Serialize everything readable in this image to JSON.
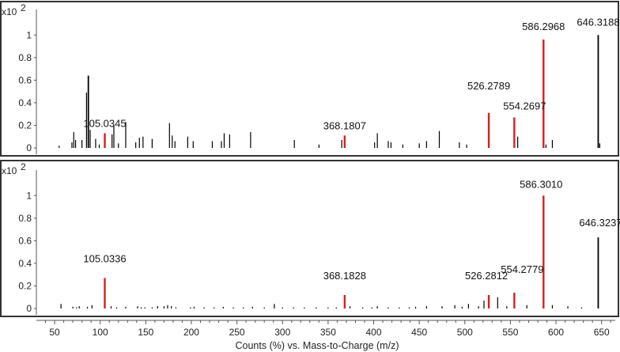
{
  "chart_data": [
    {
      "type": "bar",
      "y_multiplier": "x10",
      "y_exponent": "2",
      "ylim": [
        0,
        1.1
      ],
      "y_ticks": [
        0,
        0.2,
        0.4,
        0.6,
        0.8,
        1
      ],
      "y_tick_labels": [
        "0",
        "0.2",
        "0.4",
        "0.6",
        "0.8",
        "1"
      ],
      "xlim": [
        30,
        665
      ],
      "grid": false,
      "highlight_color": "#d62020",
      "bar_color": "#000000",
      "peaks": [
        {
          "x": 55,
          "y": 0.02,
          "hl": false
        },
        {
          "x": 69,
          "y": 0.05,
          "hl": false
        },
        {
          "x": 71,
          "y": 0.14,
          "hl": false
        },
        {
          "x": 73,
          "y": 0.07,
          "hl": false
        },
        {
          "x": 80,
          "y": 0.07,
          "hl": false
        },
        {
          "x": 85,
          "y": 0.49,
          "hl": false
        },
        {
          "x": 87,
          "y": 0.64,
          "hl": false
        },
        {
          "x": 89,
          "y": 0.16,
          "hl": false
        },
        {
          "x": 95,
          "y": 0.08,
          "hl": false
        },
        {
          "x": 99,
          "y": 0.03,
          "hl": false
        },
        {
          "x": 105.0345,
          "y": 0.13,
          "hl": true
        },
        {
          "x": 113,
          "y": 0.12,
          "hl": false
        },
        {
          "x": 115,
          "y": 0.2,
          "hl": false
        },
        {
          "x": 120,
          "y": 0.04,
          "hl": false
        },
        {
          "x": 128,
          "y": 0.23,
          "hl": false
        },
        {
          "x": 139,
          "y": 0.05,
          "hl": false
        },
        {
          "x": 143,
          "y": 0.09,
          "hl": false
        },
        {
          "x": 147,
          "y": 0.1,
          "hl": false
        },
        {
          "x": 157,
          "y": 0.08,
          "hl": false
        },
        {
          "x": 176,
          "y": 0.22,
          "hl": false
        },
        {
          "x": 179,
          "y": 0.11,
          "hl": false
        },
        {
          "x": 182,
          "y": 0.06,
          "hl": false
        },
        {
          "x": 196,
          "y": 0.1,
          "hl": false
        },
        {
          "x": 202,
          "y": 0.06,
          "hl": false
        },
        {
          "x": 223,
          "y": 0.06,
          "hl": false
        },
        {
          "x": 233,
          "y": 0.06,
          "hl": false
        },
        {
          "x": 236,
          "y": 0.13,
          "hl": false
        },
        {
          "x": 242,
          "y": 0.12,
          "hl": false
        },
        {
          "x": 265,
          "y": 0.14,
          "hl": false
        },
        {
          "x": 313,
          "y": 0.07,
          "hl": false
        },
        {
          "x": 340,
          "y": 0.03,
          "hl": false
        },
        {
          "x": 365,
          "y": 0.07,
          "hl": false
        },
        {
          "x": 368.1807,
          "y": 0.11,
          "hl": true
        },
        {
          "x": 401,
          "y": 0.05,
          "hl": false
        },
        {
          "x": 404,
          "y": 0.13,
          "hl": false
        },
        {
          "x": 416,
          "y": 0.06,
          "hl": false
        },
        {
          "x": 419,
          "y": 0.05,
          "hl": false
        },
        {
          "x": 432,
          "y": 0.03,
          "hl": false
        },
        {
          "x": 450,
          "y": 0.04,
          "hl": false
        },
        {
          "x": 458,
          "y": 0.06,
          "hl": false
        },
        {
          "x": 472,
          "y": 0.15,
          "hl": false
        },
        {
          "x": 494,
          "y": 0.05,
          "hl": false
        },
        {
          "x": 502,
          "y": 0.03,
          "hl": false
        },
        {
          "x": 526.2789,
          "y": 0.31,
          "hl": true
        },
        {
          "x": 554.2697,
          "y": 0.27,
          "hl": true
        },
        {
          "x": 558,
          "y": 0.1,
          "hl": false
        },
        {
          "x": 586.2968,
          "y": 0.96,
          "hl": true
        },
        {
          "x": 589,
          "y": 0.03,
          "hl": false
        },
        {
          "x": 596,
          "y": 0.07,
          "hl": false
        },
        {
          "x": 646.3188,
          "y": 1.0,
          "hl": false
        },
        {
          "x": 648,
          "y": 0.04,
          "hl": false
        }
      ],
      "labels": [
        {
          "text": "105.0345",
          "x": 105.0345,
          "y": 0.13
        },
        {
          "text": "368.1807",
          "x": 368.1807,
          "y": 0.11
        },
        {
          "text": "526.2789",
          "x": 526.2789,
          "y": 0.31
        },
        {
          "text": "554.2697",
          "x": 554.2697,
          "y": 0.27
        },
        {
          "text": "586.2968",
          "x": 586.2968,
          "y": 0.96
        },
        {
          "text": "646.3188",
          "x": 646.3188,
          "y": 1.0
        }
      ]
    },
    {
      "type": "bar",
      "y_multiplier": "x10",
      "y_exponent": "2",
      "ylim": [
        0,
        1.1
      ],
      "y_ticks": [
        0,
        0.2,
        0.4,
        0.6,
        0.8,
        1
      ],
      "y_tick_labels": [
        "0",
        "0.2",
        "0.4",
        "0.6",
        "0.8",
        "1"
      ],
      "xlim": [
        30,
        665
      ],
      "grid": false,
      "highlight_color": "#d62020",
      "bar_color": "#000000",
      "x_ticks": [
        50,
        100,
        150,
        200,
        250,
        300,
        350,
        400,
        450,
        500,
        550,
        600,
        650
      ],
      "x_tick_labels": [
        "50",
        "100",
        "150",
        "200",
        "250",
        "300",
        "350",
        "400",
        "450",
        "500",
        "550",
        "600",
        "650"
      ],
      "xlabel": "Counts (%) vs. Mass-to-Charge (m/z)",
      "peaks": [
        {
          "x": 57,
          "y": 0.04,
          "hl": false
        },
        {
          "x": 70,
          "y": 0.015,
          "hl": false
        },
        {
          "x": 74,
          "y": 0.01,
          "hl": false
        },
        {
          "x": 77,
          "y": 0.02,
          "hl": false
        },
        {
          "x": 86,
          "y": 0.015,
          "hl": false
        },
        {
          "x": 91,
          "y": 0.03,
          "hl": false
        },
        {
          "x": 105.0336,
          "y": 0.27,
          "hl": true
        },
        {
          "x": 112,
          "y": 0.02,
          "hl": false
        },
        {
          "x": 118,
          "y": 0.01,
          "hl": false
        },
        {
          "x": 128,
          "y": 0.015,
          "hl": false
        },
        {
          "x": 141,
          "y": 0.02,
          "hl": false
        },
        {
          "x": 145,
          "y": 0.01,
          "hl": false
        },
        {
          "x": 149,
          "y": 0.01,
          "hl": false
        },
        {
          "x": 157,
          "y": 0.01,
          "hl": false
        },
        {
          "x": 163,
          "y": 0.02,
          "hl": false
        },
        {
          "x": 170,
          "y": 0.02,
          "hl": false
        },
        {
          "x": 174,
          "y": 0.03,
          "hl": false
        },
        {
          "x": 178,
          "y": 0.02,
          "hl": false
        },
        {
          "x": 183,
          "y": 0.01,
          "hl": false
        },
        {
          "x": 199,
          "y": 0.01,
          "hl": false
        },
        {
          "x": 203,
          "y": 0.015,
          "hl": false
        },
        {
          "x": 214,
          "y": 0.01,
          "hl": false
        },
        {
          "x": 225,
          "y": 0.01,
          "hl": false
        },
        {
          "x": 235,
          "y": 0.015,
          "hl": false
        },
        {
          "x": 246,
          "y": 0.01,
          "hl": false
        },
        {
          "x": 257,
          "y": 0.01,
          "hl": false
        },
        {
          "x": 267,
          "y": 0.015,
          "hl": false
        },
        {
          "x": 280,
          "y": 0.01,
          "hl": false
        },
        {
          "x": 291,
          "y": 0.04,
          "hl": false
        },
        {
          "x": 300,
          "y": 0.01,
          "hl": false
        },
        {
          "x": 312,
          "y": 0.01,
          "hl": false
        },
        {
          "x": 324,
          "y": 0.01,
          "hl": false
        },
        {
          "x": 337,
          "y": 0.01,
          "hl": false
        },
        {
          "x": 350,
          "y": 0.01,
          "hl": false
        },
        {
          "x": 359,
          "y": 0.01,
          "hl": false
        },
        {
          "x": 368.1828,
          "y": 0.12,
          "hl": true
        },
        {
          "x": 374,
          "y": 0.02,
          "hl": false
        },
        {
          "x": 388,
          "y": 0.01,
          "hl": false
        },
        {
          "x": 398,
          "y": 0.01,
          "hl": false
        },
        {
          "x": 404,
          "y": 0.02,
          "hl": false
        },
        {
          "x": 416,
          "y": 0.01,
          "hl": false
        },
        {
          "x": 428,
          "y": 0.01,
          "hl": false
        },
        {
          "x": 439,
          "y": 0.01,
          "hl": false
        },
        {
          "x": 446,
          "y": 0.015,
          "hl": false
        },
        {
          "x": 458,
          "y": 0.02,
          "hl": false
        },
        {
          "x": 475,
          "y": 0.02,
          "hl": false
        },
        {
          "x": 489,
          "y": 0.03,
          "hl": false
        },
        {
          "x": 497,
          "y": 0.015,
          "hl": false
        },
        {
          "x": 504,
          "y": 0.04,
          "hl": false
        },
        {
          "x": 515,
          "y": 0.02,
          "hl": false
        },
        {
          "x": 521,
          "y": 0.07,
          "hl": false
        },
        {
          "x": 526.2812,
          "y": 0.12,
          "hl": true
        },
        {
          "x": 536,
          "y": 0.1,
          "hl": false
        },
        {
          "x": 546,
          "y": 0.02,
          "hl": false
        },
        {
          "x": 554.2779,
          "y": 0.14,
          "hl": true
        },
        {
          "x": 568,
          "y": 0.03,
          "hl": false
        },
        {
          "x": 586.301,
          "y": 1.0,
          "hl": true
        },
        {
          "x": 596,
          "y": 0.03,
          "hl": false
        },
        {
          "x": 613,
          "y": 0.02,
          "hl": false
        },
        {
          "x": 628,
          "y": 0.01,
          "hl": false
        },
        {
          "x": 646.3237,
          "y": 0.63,
          "hl": false
        }
      ],
      "labels": [
        {
          "text": "105.0336",
          "x": 105.0336,
          "y": 0.27
        },
        {
          "text": "368.1828",
          "x": 368.1828,
          "y": 0.12
        },
        {
          "text": "526.2812",
          "x": 526.2812,
          "y": 0.12
        },
        {
          "text": "554.2779",
          "x": 554.2779,
          "y": 0.14
        },
        {
          "text": "586.3010",
          "x": 586.301,
          "y": 1.0
        },
        {
          "text": "646.3237",
          "x": 646.3237,
          "y": 0.63
        }
      ]
    }
  ]
}
